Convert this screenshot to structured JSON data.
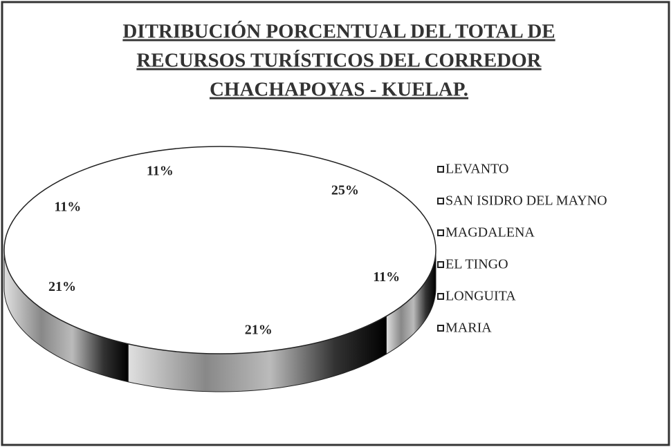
{
  "chart_data": {
    "type": "pie",
    "title": [
      "DITRIBUCIÓN PORCENTUAL DEL TOTAL  DE",
      "RECURSOS TURÍSTICOS DEL CORREDOR",
      "CHACHAPOYAS - KUELAP."
    ],
    "categories": [
      "LEVANTO",
      "SAN ISIDRO DEL MAYNO",
      "MAGDALENA",
      "EL TINGO",
      "LONGUITA",
      "MARIA"
    ],
    "values": [
      25,
      11,
      21,
      21,
      11,
      11
    ],
    "value_labels": [
      "25%",
      "11%",
      "21%",
      "21%",
      "11%",
      "11%"
    ],
    "colors": [
      "#ffffff",
      "#ffffff",
      "#ffffff",
      "#ffffff",
      "#ffffff",
      "#ffffff"
    ],
    "legend": "right"
  }
}
